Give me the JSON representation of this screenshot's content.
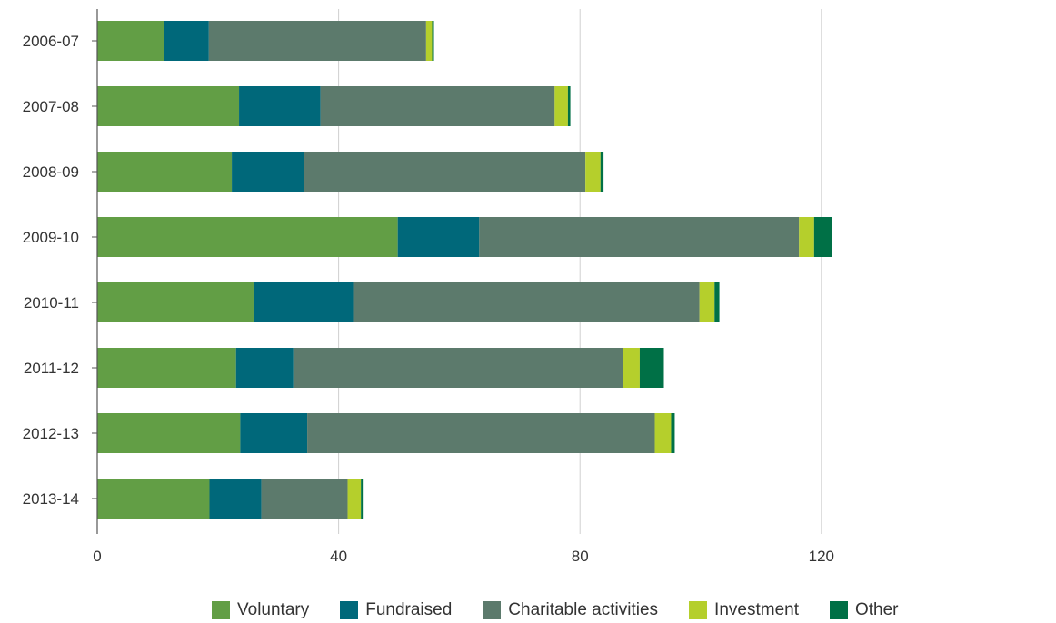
{
  "chart_data": {
    "type": "bar",
    "orientation": "horizontal",
    "stacked": true,
    "categories": [
      "2006-07",
      "2007-08",
      "2008-09",
      "2009-10",
      "2010-11",
      "2011-12",
      "2012-13",
      "2013-14"
    ],
    "series": [
      {
        "name": "Voluntary",
        "color": "#629e45",
        "values": [
          11,
          23.5,
          22.3,
          49.8,
          25.9,
          23,
          23.7,
          18.6
        ]
      },
      {
        "name": "Fundraised",
        "color": "#00687a",
        "values": [
          7.5,
          13.5,
          12,
          13.5,
          16.5,
          9.5,
          11.1,
          8.6
        ]
      },
      {
        "name": "Charitable activities",
        "color": "#5c7a6c",
        "values": [
          36,
          38.8,
          46.6,
          53,
          57.4,
          54.7,
          57.6,
          14.3
        ]
      },
      {
        "name": "Investment",
        "color": "#b5cf2c",
        "values": [
          1,
          2.2,
          2.5,
          2.5,
          2.5,
          2.7,
          2.7,
          2.2
        ]
      },
      {
        "name": "Other",
        "color": "#007046",
        "values": [
          0.3,
          0.4,
          0.5,
          3,
          0.8,
          4,
          0.6,
          0.3
        ]
      }
    ],
    "xlim": [
      0,
      160
    ],
    "x_ticks": [
      0,
      40,
      80,
      120
    ],
    "grid": true,
    "legend_position": "bottom",
    "title": "",
    "xlabel": "",
    "ylabel": ""
  }
}
